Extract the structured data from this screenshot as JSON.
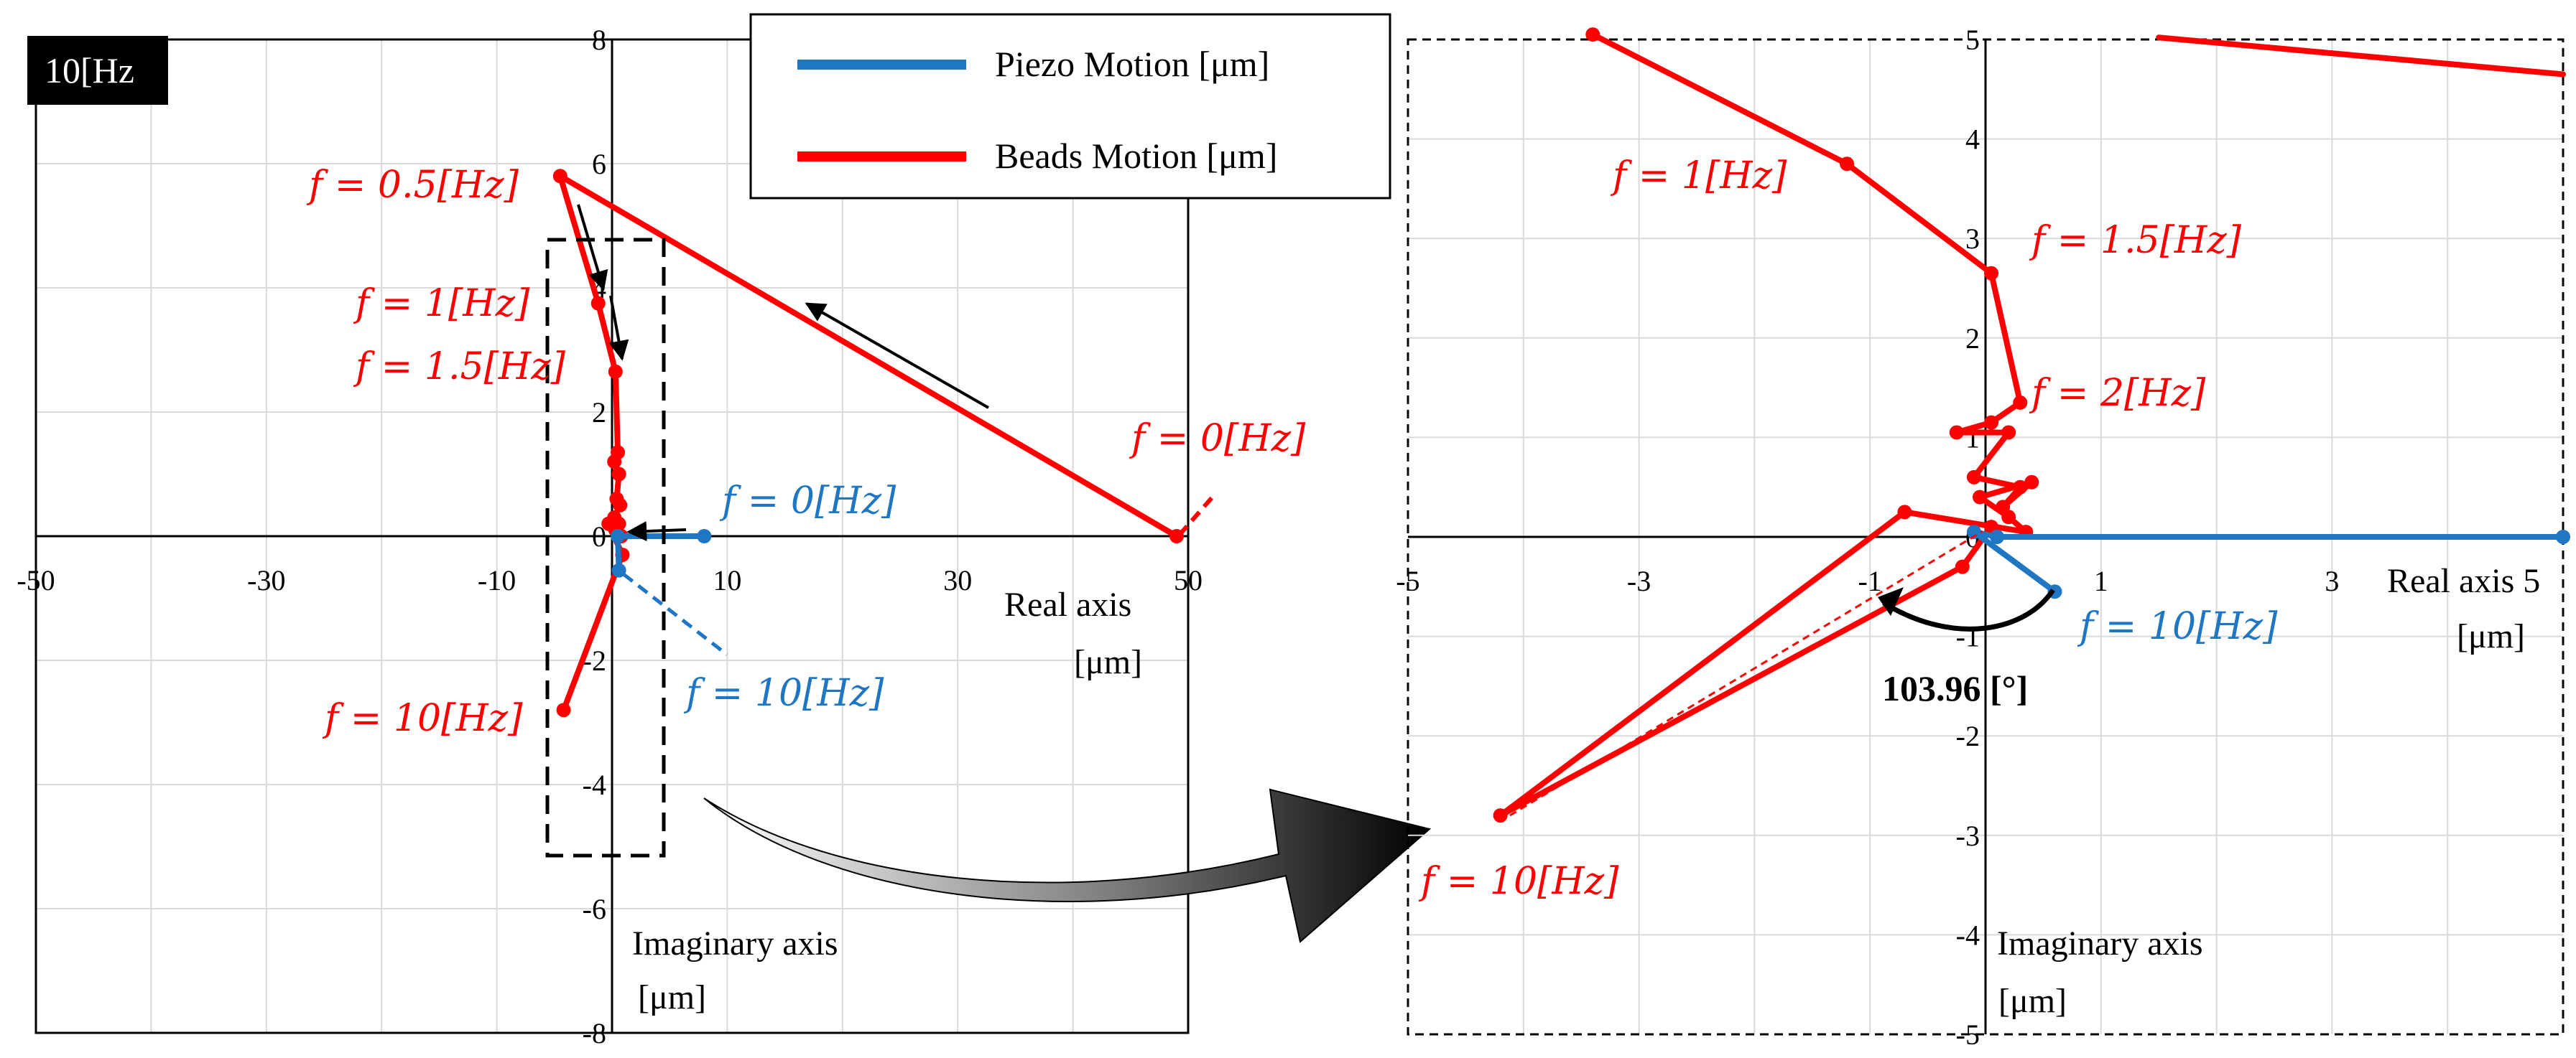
{
  "badge": "10[Hz",
  "legend": {
    "piezo_label": "Piezo Motion [μm]",
    "beads_label": "Beads Motion [μm]"
  },
  "colors": {
    "piezo": "#1f77c4",
    "beads": "#ff0000",
    "grid": "#d9d9d9",
    "axis": "#000000"
  },
  "chart_data": [
    {
      "id": "overview",
      "type": "line",
      "xlabel": [
        "Real axis",
        "[μm]"
      ],
      "ylabel": [
        "Imaginary axis",
        "[μm]"
      ],
      "xlim": [
        -50,
        50
      ],
      "ylim": [
        -8,
        8
      ],
      "x_ticks": [
        -50,
        -30,
        -10,
        10,
        30,
        50
      ],
      "y_ticks": [
        -8,
        -6,
        -4,
        -2,
        0,
        2,
        4,
        6,
        8
      ],
      "grid": true,
      "series": [
        {
          "name": "Beads Motion [μm]",
          "color": "#ff0000",
          "points": [
            [
              49,
              0
            ],
            [
              -4.5,
              5.8
            ],
            [
              -1.2,
              3.75
            ],
            [
              0.3,
              2.65
            ],
            [
              0.5,
              1.35
            ],
            [
              0.2,
              1.2
            ],
            [
              0.6,
              1.0
            ],
            [
              0.4,
              0.6
            ],
            [
              0.7,
              0.5
            ],
            [
              0.2,
              0.3
            ],
            [
              0.6,
              0.2
            ],
            [
              0.3,
              0.1
            ],
            [
              0.8,
              0
            ],
            [
              -0.3,
              0.2
            ],
            [
              0.9,
              -0.3
            ],
            [
              -4.2,
              -2.8
            ]
          ]
        },
        {
          "name": "Piezo Motion [μm]",
          "color": "#1f77c4",
          "points": [
            [
              8,
              0
            ],
            [
              0.5,
              0
            ],
            [
              0.6,
              -0.55
            ]
          ]
        }
      ],
      "annotations": [
        {
          "text": "f = 0.5[Hz]",
          "color": "#ff0000"
        },
        {
          "text": "f = 1[Hz]",
          "color": "#ff0000"
        },
        {
          "text": "f = 1.5[Hz]",
          "color": "#ff0000"
        },
        {
          "text": "f = 10[Hz]",
          "color": "#ff0000"
        },
        {
          "text": "f = 0[Hz]",
          "color": "#ff0000"
        },
        {
          "text": "f = 0[Hz]",
          "color": "#1f77c4"
        },
        {
          "text": "f = 10[Hz]",
          "color": "#1f77c4"
        }
      ]
    },
    {
      "id": "zoom",
      "type": "line",
      "xlabel": [
        "Real axis 5",
        "[μm]"
      ],
      "ylabel": [
        "Imaginary axis",
        "[μm]"
      ],
      "xlim": [
        -5,
        5
      ],
      "ylim": [
        -5,
        5
      ],
      "x_ticks": [
        -5,
        -3,
        -1,
        1,
        3
      ],
      "y_ticks": [
        -5,
        -4,
        -3,
        -2,
        -1,
        0,
        1,
        2,
        3,
        4,
        5
      ],
      "grid": true,
      "series": [
        {
          "name": "Beads Motion [μm]",
          "color": "#ff0000",
          "points": [
            [
              -3.4,
              5.05
            ],
            [
              -1.2,
              3.75
            ],
            [
              0.05,
              2.65
            ],
            [
              0.3,
              1.35
            ],
            [
              0.05,
              1.15
            ],
            [
              -0.25,
              1.05
            ],
            [
              0.2,
              1.05
            ],
            [
              -0.1,
              0.6
            ],
            [
              0.3,
              0.5
            ],
            [
              0.15,
              0.3
            ],
            [
              0.4,
              0.55
            ],
            [
              -0.05,
              0.4
            ],
            [
              0.2,
              0.2
            ],
            [
              0.35,
              0.05
            ],
            [
              -0.7,
              0.25
            ],
            [
              -4.2,
              -2.8
            ],
            [
              -0.2,
              -0.3
            ],
            [
              0.05,
              0.1
            ]
          ]
        },
        {
          "name": "Beads Motion [μm] (tail)",
          "color": "#ff0000",
          "points": [
            [
              1.5,
              5.02
            ],
            [
              5,
              4.65
            ]
          ]
        },
        {
          "name": "Piezo Motion [μm]",
          "color": "#1f77c4",
          "points": [
            [
              5,
              0
            ],
            [
              0.1,
              0
            ],
            [
              -0.1,
              0.05
            ],
            [
              0.6,
              -0.55
            ]
          ]
        }
      ],
      "angle_label": "103.96 [°]",
      "annotations": [
        {
          "text": "f = 1[Hz]",
          "color": "#ff0000"
        },
        {
          "text": "f = 1.5[Hz]",
          "color": "#ff0000"
        },
        {
          "text": "f = 2[Hz]",
          "color": "#ff0000"
        },
        {
          "text": "f = 10[Hz]",
          "color": "#ff0000"
        },
        {
          "text": "f = 10[Hz]",
          "color": "#1f77c4"
        }
      ]
    }
  ]
}
